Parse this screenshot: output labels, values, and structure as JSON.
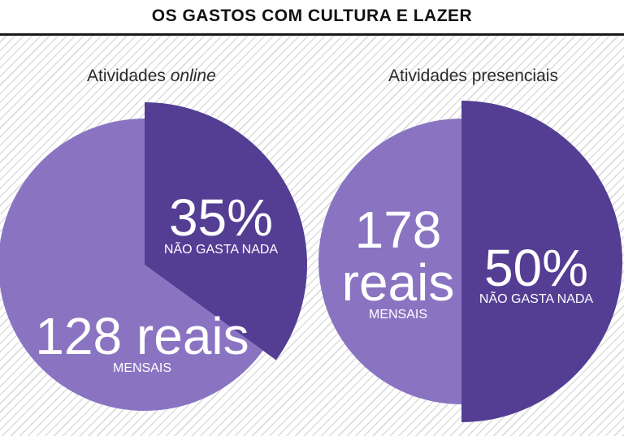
{
  "title": "OS GASTOS COM CULTURA E LAZER",
  "chart_data": [
    {
      "type": "pie",
      "title_prefix": "Atividades ",
      "title_italic": "online",
      "slices": [
        {
          "label": "NÃO GASTA NADA",
          "value": 35,
          "value_label": "35%",
          "color": "#533e94"
        },
        {
          "label": "MENSAIS",
          "value": 65,
          "value_label": "128 reais",
          "color": "#8a74c2"
        }
      ]
    },
    {
      "type": "pie",
      "title_prefix": "Atividades presenciais",
      "title_italic": "",
      "slices": [
        {
          "label": "NÃO GASTA NADA",
          "value": 50,
          "value_label": "50%",
          "color": "#533e94"
        },
        {
          "label": "MENSAIS",
          "value": 50,
          "value_label": "178 reais",
          "color": "#8a74c2"
        }
      ]
    }
  ]
}
